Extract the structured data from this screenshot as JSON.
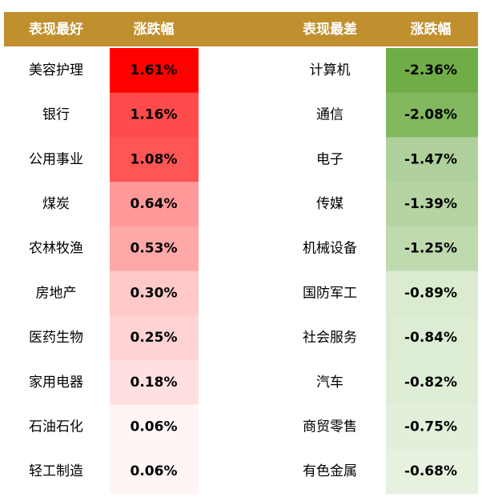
{
  "header": {
    "columns": [
      "表现最好",
      "涨跌幅",
      "表现最差",
      "涨跌幅"
    ],
    "color": "#C0902F"
  },
  "table": {
    "rows": [
      {
        "best": "美容护理",
        "best_change": "1.61%",
        "best_color": "#FF0000",
        "worst": "计算机",
        "worst_change": "-2.36%",
        "worst_color": "#70AD47"
      },
      {
        "best": "银行",
        "best_change": "1.16%",
        "best_color": "#FF4B4B",
        "worst": "通信",
        "worst_change": "-2.08%",
        "worst_color": "#81B860"
      },
      {
        "best": "公用事业",
        "best_change": "1.08%",
        "best_color": "#FF5555",
        "worst": "电子",
        "worst_change": "-1.47%",
        "worst_color": "#AFD09A"
      },
      {
        "best": "煤炭",
        "best_change": "0.64%",
        "best_color": "#FF9999",
        "worst": "传媒",
        "worst_change": "-1.39%",
        "worst_color": "#B5D4A2"
      },
      {
        "best": "农林牧渔",
        "best_change": "0.53%",
        "best_color": "#FFA8A8",
        "worst": "机械设备",
        "worst_change": "-1.25%",
        "worst_color": "#C0DAAF"
      },
      {
        "best": "房地产",
        "best_change": "0.30%",
        "best_color": "#FFC9C9",
        "worst": "国防军工",
        "worst_change": "-0.89%",
        "worst_color": "#DAEBD0"
      },
      {
        "best": "医药生物",
        "best_change": "0.25%",
        "best_color": "#FFD3D3",
        "worst": "社会服务",
        "worst_change": "-0.84%",
        "worst_color": "#DDEDD3"
      },
      {
        "best": "家用电器",
        "best_change": "0.18%",
        "best_color": "#FFE0E0",
        "worst": "汽车",
        "worst_change": "-0.82%",
        "worst_color": "#DEEDD5"
      },
      {
        "best": "石油石化",
        "best_change": "0.06%",
        "best_color": "#FFF5F5",
        "worst": "商贸零售",
        "worst_change": "-0.75%",
        "worst_color": "#E2EFDA"
      },
      {
        "best": "轻工制造",
        "best_change": "0.06%",
        "best_color": "#FFF5F5",
        "worst": "有色金属",
        "worst_change": "-0.68%",
        "worst_color": "#E6F1DF"
      }
    ]
  }
}
